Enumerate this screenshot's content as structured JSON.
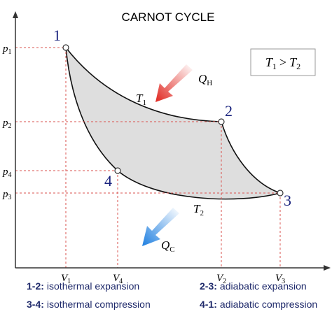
{
  "title": "CARNOT CYCLE",
  "axes": {
    "pressure_labels": [
      {
        "symbol": "p",
        "subscript": "1"
      },
      {
        "symbol": "p",
        "subscript": "2"
      },
      {
        "symbol": "p",
        "subscript": "4"
      },
      {
        "symbol": "p",
        "subscript": "3"
      }
    ],
    "volume_labels": [
      {
        "symbol": "V",
        "subscript": "1"
      },
      {
        "symbol": "V",
        "subscript": "4"
      },
      {
        "symbol": "V",
        "subscript": "2"
      },
      {
        "symbol": "V",
        "subscript": "3"
      }
    ]
  },
  "points": [
    {
      "label": "1"
    },
    {
      "label": "2"
    },
    {
      "label": "3"
    },
    {
      "label": "4"
    }
  ],
  "temperatures": {
    "hot": {
      "symbol": "T",
      "subscript": "1"
    },
    "cold": {
      "symbol": "T",
      "subscript": "2"
    }
  },
  "heat": {
    "in": {
      "symbol": "Q",
      "subscript": "H"
    },
    "out": {
      "symbol": "Q",
      "subscript": "C"
    }
  },
  "condition": {
    "left": {
      "symbol": "T",
      "subscript": "1"
    },
    "relation": ">",
    "right": {
      "symbol": "T",
      "subscript": "2"
    }
  },
  "legend": [
    {
      "label": "1-2:",
      "description": "isothermal expansion"
    },
    {
      "label": "2-3:",
      "description": "adiabatic expansion"
    },
    {
      "label": "3-4:",
      "description": "isothermal compression"
    },
    {
      "label": "4-1:",
      "description": "adiabatic compression"
    }
  ]
}
